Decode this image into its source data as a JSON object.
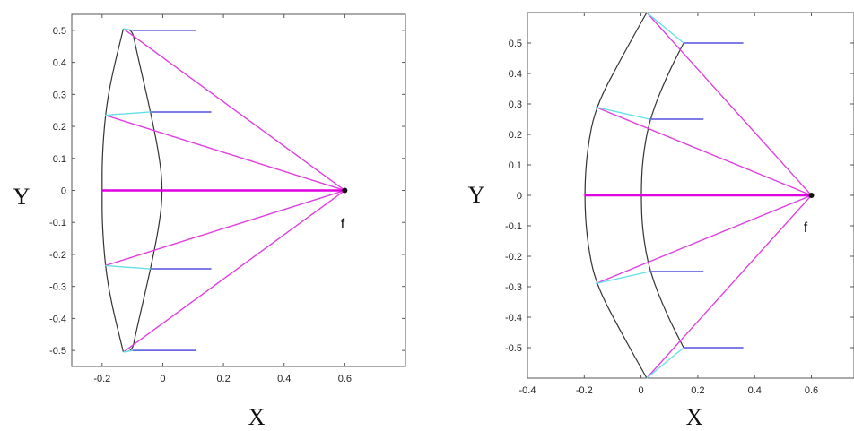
{
  "chart_data": [
    {
      "type": "line",
      "xlabel": "X",
      "ylabel": "Y",
      "focus_label": "f",
      "focus": [
        0.6,
        0
      ],
      "xlim": [
        -0.3,
        0.8
      ],
      "ylim": [
        -0.55,
        0.55
      ],
      "xticks": [
        "-0.2",
        "0",
        "0.2",
        "0.4",
        "0.6"
      ],
      "yticks": [
        "0.5",
        "0.4",
        "0.3",
        "0.2",
        "0.1",
        "0",
        "-0.1",
        "-0.2",
        "-0.3",
        "-0.4",
        "-0.5"
      ],
      "colors": {
        "surface": "#333333",
        "ray_in": "#6a6ae0",
        "ray_mid": "#66e0e8",
        "ray_out": "#e040e0",
        "axis_ray": "#e000e0"
      },
      "incoming_rays": [
        {
          "from": [
            -0.1,
            0.5
          ],
          "to": [
            0.11,
            0.5
          ]
        },
        {
          "from": [
            -0.04,
            0.245
          ],
          "to": [
            0.16,
            0.245
          ]
        },
        {
          "from": [
            -0.04,
            -0.245
          ],
          "to": [
            0.16,
            -0.245
          ]
        },
        {
          "from": [
            -0.1,
            -0.5
          ],
          "to": [
            0.11,
            -0.5
          ]
        }
      ],
      "refracted_rays": [
        {
          "from": [
            -0.1,
            0.5
          ],
          "to": [
            -0.13,
            0.505
          ]
        },
        {
          "from": [
            -0.04,
            0.245
          ],
          "to": [
            -0.19,
            0.235
          ]
        },
        {
          "from": [
            -0.04,
            -0.245
          ],
          "to": [
            -0.19,
            -0.235
          ]
        },
        {
          "from": [
            -0.1,
            -0.5
          ],
          "to": [
            -0.13,
            -0.505
          ]
        }
      ],
      "focused_rays": [
        {
          "from": [
            -0.13,
            0.505
          ],
          "to": [
            0.6,
            0
          ]
        },
        {
          "from": [
            -0.19,
            0.235
          ],
          "to": [
            0.6,
            0
          ]
        },
        {
          "from": [
            -0.19,
            -0.235
          ],
          "to": [
            0.6,
            0
          ]
        },
        {
          "from": [
            -0.13,
            -0.505
          ],
          "to": [
            0.6,
            0
          ]
        }
      ],
      "axis_ray": {
        "from": [
          -0.2,
          0
        ],
        "to": [
          0.6,
          0
        ]
      },
      "surfaces": [
        {
          "points": [
            [
              -0.13,
              0.505
            ],
            [
              -0.17,
              0.35
            ],
            [
              -0.19,
              0.235
            ],
            [
              -0.2,
              0.1
            ],
            [
              -0.2,
              0
            ],
            [
              -0.2,
              -0.1
            ],
            [
              -0.19,
              -0.235
            ],
            [
              -0.17,
              -0.35
            ],
            [
              -0.13,
              -0.505
            ]
          ]
        },
        {
          "points": [
            [
              -0.13,
              0.505
            ],
            [
              -0.1,
              0.5
            ],
            [
              -0.09,
              0.45
            ],
            [
              -0.04,
              0.245
            ],
            [
              -0.01,
              0.1
            ],
            [
              0,
              0
            ],
            [
              -0.01,
              -0.1
            ],
            [
              -0.04,
              -0.245
            ],
            [
              -0.09,
              -0.45
            ],
            [
              -0.1,
              -0.5
            ],
            [
              -0.13,
              -0.505
            ]
          ]
        }
      ]
    },
    {
      "type": "line",
      "xlabel": "X",
      "ylabel": "Y",
      "focus_label": "f",
      "focus": [
        0.6,
        0
      ],
      "xlim": [
        -0.4,
        0.75
      ],
      "ylim": [
        -0.6,
        0.6
      ],
      "xticks": [
        "-0.4",
        "-0.2",
        "0",
        "0.2",
        "0.4",
        "0.6"
      ],
      "yticks": [
        "0.5",
        "0.4",
        "0.3",
        "0.2",
        "0.1",
        "0",
        "-0.1",
        "-0.2",
        "-0.3",
        "-0.4",
        "-0.5"
      ],
      "colors": {
        "surface": "#333333",
        "ray_in": "#6a6ae0",
        "ray_mid": "#66e0e8",
        "ray_out": "#e040e0",
        "axis_ray": "#e000e0"
      },
      "incoming_rays": [
        {
          "from": [
            0.15,
            0.5
          ],
          "to": [
            0.36,
            0.5
          ]
        },
        {
          "from": [
            0.03,
            0.25
          ],
          "to": [
            0.22,
            0.25
          ]
        },
        {
          "from": [
            0.03,
            -0.25
          ],
          "to": [
            0.22,
            -0.25
          ]
        },
        {
          "from": [
            0.15,
            -0.5
          ],
          "to": [
            0.36,
            -0.5
          ]
        }
      ],
      "refracted_rays": [
        {
          "from": [
            0.15,
            0.5
          ],
          "to": [
            0.02,
            0.6
          ]
        },
        {
          "from": [
            0.03,
            0.25
          ],
          "to": [
            -0.16,
            0.29
          ]
        },
        {
          "from": [
            0.03,
            -0.25
          ],
          "to": [
            -0.16,
            -0.29
          ]
        },
        {
          "from": [
            0.15,
            -0.5
          ],
          "to": [
            0.02,
            -0.6
          ]
        }
      ],
      "focused_rays": [
        {
          "from": [
            0.02,
            0.6
          ],
          "to": [
            0.6,
            0
          ]
        },
        {
          "from": [
            -0.16,
            0.29
          ],
          "to": [
            0.6,
            0
          ]
        },
        {
          "from": [
            -0.16,
            -0.29
          ],
          "to": [
            0.6,
            0
          ]
        },
        {
          "from": [
            0.02,
            -0.6
          ],
          "to": [
            0.6,
            0
          ]
        }
      ],
      "axis_ray": {
        "from": [
          -0.2,
          0
        ],
        "to": [
          0.6,
          0
        ]
      },
      "surfaces": [
        {
          "points": [
            [
              0.02,
              0.6
            ],
            [
              -0.07,
              0.45
            ],
            [
              -0.16,
              0.29
            ],
            [
              -0.19,
              0.15
            ],
            [
              -0.2,
              0
            ],
            [
              -0.19,
              -0.15
            ],
            [
              -0.16,
              -0.29
            ],
            [
              -0.07,
              -0.45
            ],
            [
              0.02,
              -0.6
            ]
          ]
        },
        {
          "points": [
            [
              0.15,
              0.5
            ],
            [
              0.09,
              0.39
            ],
            [
              0.03,
              0.25
            ],
            [
              0.005,
              0.12
            ],
            [
              0,
              0
            ],
            [
              0.005,
              -0.12
            ],
            [
              0.03,
              -0.25
            ],
            [
              0.09,
              -0.39
            ],
            [
              0.15,
              -0.5
            ]
          ]
        }
      ]
    }
  ]
}
